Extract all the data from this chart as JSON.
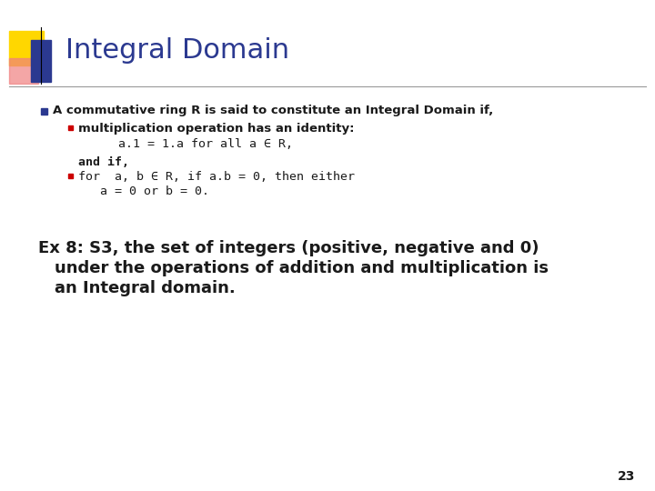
{
  "title": "Integral Domain",
  "title_color": "#2B3990",
  "title_fontsize": 22,
  "bg_color": "#FFFFFF",
  "accent_yellow": "#FFD700",
  "accent_pink": "#F08080",
  "accent_blue": "#2B3990",
  "bullet1_color": "#1A1A1A",
  "bullet1_square_color": "#2B3990",
  "bullet2_square_color": "#CC0000",
  "line_color": "#999999",
  "page_number": "23",
  "bullet1": "A commutative ring R is said to constitute an Integral Domain if,",
  "sub_bullet1": "multiplication operation has an identity:",
  "code_line1": "a.1 = 1.a for all a ∈ R,",
  "and_if": "and if,",
  "code_line2": "for  a, b ∈ R, if a.b = 0, then either",
  "code_line3": "a = 0 or b = 0.",
  "example_line1": "Ex 8: S3, the set of integers (positive, negative and 0)",
  "example_line2": "under the operations of addition and multiplication is",
  "example_line3": "an Integral domain.",
  "example_color": "#1A1A1A",
  "example_fontsize": 13,
  "bullet_fontsize": 9.5,
  "code_fontsize": 9.5
}
